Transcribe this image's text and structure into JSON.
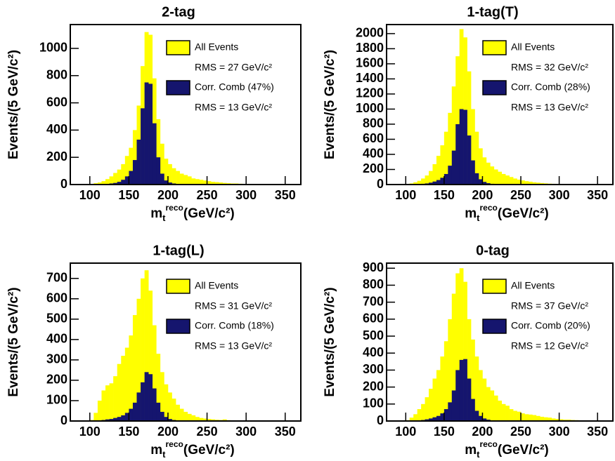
{
  "chart_data": [
    {
      "type": "histogram",
      "title": "2-tag",
      "x_label": {
        "base": "m",
        "sub": "t",
        "sup": "reco",
        "rest": "(GeV/c²)"
      },
      "y_label": "Events/(5 GeV/c²)",
      "bins": [
        95,
        100,
        105,
        110,
        115,
        120,
        125,
        130,
        135,
        140,
        145,
        150,
        155,
        160,
        165,
        170,
        175,
        180,
        185,
        190,
        195,
        200,
        205,
        210,
        215,
        220,
        225,
        230,
        235,
        240,
        245,
        250,
        255,
        260,
        265,
        270,
        275,
        280,
        285,
        290,
        295,
        300,
        305,
        310,
        315,
        320,
        325,
        330,
        335,
        340
      ],
      "series": [
        {
          "name": "All Events",
          "rms": "RMS = 27 GeV/c²",
          "color": "#ffff00",
          "values": [
            0,
            5,
            10,
            15,
            25,
            40,
            60,
            85,
            110,
            150,
            210,
            270,
            400,
            580,
            870,
            1120,
            1100,
            780,
            480,
            300,
            190,
            150,
            120,
            100,
            80,
            70,
            60,
            45,
            40,
            35,
            30,
            25,
            20,
            18,
            15,
            12,
            10,
            8,
            8,
            6,
            5,
            5,
            4,
            3,
            3,
            2,
            2,
            1,
            1
          ]
        },
        {
          "name": "Corr. Comb (47%)",
          "rms": "RMS = 13 GeV/c²",
          "color": "#15156e",
          "values": [
            0,
            0,
            0,
            0,
            2,
            5,
            8,
            12,
            20,
            35,
            60,
            100,
            180,
            330,
            560,
            750,
            740,
            450,
            200,
            80,
            30,
            15,
            8,
            5,
            3,
            2,
            1,
            1,
            0,
            0,
            0,
            0,
            0,
            0,
            0,
            0,
            0,
            0,
            0,
            0,
            0,
            0,
            0,
            0,
            0,
            0,
            0,
            0,
            0
          ]
        }
      ],
      "xlim": [
        75,
        370
      ],
      "ylim": [
        0,
        1175
      ],
      "xticks": [
        100,
        150,
        200,
        250,
        300,
        350
      ],
      "yticks": [
        0,
        200,
        400,
        600,
        800,
        1000
      ]
    },
    {
      "type": "histogram",
      "title": "1-tag(T)",
      "x_label": {
        "base": "m",
        "sub": "t",
        "sup": "reco",
        "rest": "(GeV/c²)"
      },
      "y_label": "Events/(5 GeV/c²)",
      "bins": [
        95,
        100,
        105,
        110,
        115,
        120,
        125,
        130,
        135,
        140,
        145,
        150,
        155,
        160,
        165,
        170,
        175,
        180,
        185,
        190,
        195,
        200,
        205,
        210,
        215,
        220,
        225,
        230,
        235,
        240,
        245,
        250,
        255,
        260,
        265,
        270,
        275,
        280,
        285,
        290,
        295,
        300,
        305,
        310,
        315,
        320,
        325,
        330,
        335,
        340
      ],
      "series": [
        {
          "name": "All Events",
          "rms": "RMS = 32 GeV/c²",
          "color": "#ffff00",
          "values": [
            0,
            5,
            15,
            30,
            50,
            80,
            120,
            180,
            270,
            380,
            520,
            700,
            950,
            1300,
            1700,
            2060,
            1950,
            1500,
            1000,
            700,
            480,
            360,
            290,
            240,
            200,
            170,
            140,
            120,
            100,
            80,
            65,
            55,
            45,
            38,
            30,
            25,
            20,
            16,
            12,
            10,
            8,
            6,
            5,
            4,
            3,
            3,
            2,
            2,
            1
          ]
        },
        {
          "name": "Corr. Comb (28%)",
          "rms": "RMS = 13 GeV/c²",
          "color": "#15156e",
          "values": [
            0,
            0,
            0,
            2,
            5,
            10,
            15,
            25,
            40,
            60,
            90,
            140,
            250,
            450,
            800,
            1000,
            990,
            650,
            320,
            150,
            70,
            35,
            18,
            10,
            5,
            3,
            2,
            1,
            0,
            0,
            0,
            0,
            0,
            0,
            0,
            0,
            0,
            0,
            0,
            0,
            0,
            0,
            0,
            0,
            0,
            0,
            0,
            0,
            0
          ]
        }
      ],
      "xlim": [
        75,
        370
      ],
      "ylim": [
        0,
        2120
      ],
      "xticks": [
        100,
        150,
        200,
        250,
        300,
        350
      ],
      "yticks": [
        0,
        200,
        400,
        600,
        800,
        1000,
        1200,
        1400,
        1600,
        1800,
        2000
      ]
    },
    {
      "type": "histogram",
      "title": "1-tag(L)",
      "x_label": {
        "base": "m",
        "sub": "t",
        "sup": "reco",
        "rest": "(GeV/c²)"
      },
      "y_label": "Events/(5 GeV/c²)",
      "bins": [
        95,
        100,
        105,
        110,
        115,
        120,
        125,
        130,
        135,
        140,
        145,
        150,
        155,
        160,
        165,
        170,
        175,
        180,
        185,
        190,
        195,
        200,
        205,
        210,
        215,
        220,
        225,
        230,
        235,
        240,
        245,
        250,
        255,
        260,
        265,
        270,
        275,
        280,
        285,
        290,
        295,
        300,
        305,
        310,
        315,
        320,
        325,
        330,
        335,
        340
      ],
      "series": [
        {
          "name": "All Events",
          "rms": "RMS = 31 GeV/c²",
          "color": "#ffff00",
          "values": [
            0,
            5,
            40,
            100,
            150,
            175,
            185,
            220,
            280,
            320,
            360,
            420,
            520,
            600,
            700,
            740,
            640,
            470,
            330,
            240,
            180,
            140,
            110,
            80,
            60,
            45,
            35,
            28,
            20,
            15,
            12,
            10,
            8,
            6,
            5,
            8,
            4,
            3,
            3,
            2,
            2,
            1,
            1,
            1,
            0,
            0,
            0,
            0,
            0
          ]
        },
        {
          "name": "Corr. Comb (18%)",
          "rms": "RMS = 13 GeV/c²",
          "color": "#15156e",
          "values": [
            0,
            0,
            1,
            3,
            5,
            8,
            10,
            15,
            20,
            28,
            40,
            60,
            90,
            140,
            190,
            240,
            230,
            160,
            90,
            45,
            20,
            10,
            5,
            3,
            2,
            1,
            0,
            0,
            0,
            0,
            0,
            0,
            0,
            0,
            0,
            0,
            0,
            0,
            0,
            0,
            0,
            0,
            0,
            0,
            0,
            0,
            0,
            0,
            0
          ]
        }
      ],
      "xlim": [
        75,
        370
      ],
      "ylim": [
        0,
        775
      ],
      "xticks": [
        100,
        150,
        200,
        250,
        300,
        350
      ],
      "yticks": [
        0,
        100,
        200,
        300,
        400,
        500,
        600,
        700
      ]
    },
    {
      "type": "histogram",
      "title": "0-tag",
      "x_label": {
        "base": "m",
        "sub": "t",
        "sup": "reco",
        "rest": "(GeV/c²)"
      },
      "y_label": "Events/(5 GeV/c²)",
      "bins": [
        95,
        100,
        105,
        110,
        115,
        120,
        125,
        130,
        135,
        140,
        145,
        150,
        155,
        160,
        165,
        170,
        175,
        180,
        185,
        190,
        195,
        200,
        205,
        210,
        215,
        220,
        225,
        230,
        235,
        240,
        245,
        250,
        255,
        260,
        265,
        270,
        275,
        280,
        285,
        290,
        295,
        300,
        305,
        310,
        315,
        320,
        325,
        330,
        335,
        340
      ],
      "series": [
        {
          "name": "All Events",
          "rms": "RMS = 37 GeV/c²",
          "color": "#ffff00",
          "values": [
            0,
            5,
            20,
            40,
            70,
            100,
            140,
            190,
            250,
            300,
            380,
            470,
            600,
            750,
            870,
            900,
            820,
            600,
            480,
            380,
            300,
            250,
            200,
            180,
            150,
            120,
            100,
            90,
            70,
            60,
            55,
            45,
            40,
            38,
            35,
            30,
            25,
            22,
            20,
            15,
            12,
            10,
            8,
            8,
            6,
            5,
            4,
            3,
            2
          ]
        },
        {
          "name": "Corr. Comb (20%)",
          "rms": "RMS = 12 GeV/c²",
          "color": "#15156e",
          "values": [
            0,
            0,
            1,
            2,
            4,
            6,
            10,
            15,
            22,
            30,
            45,
            70,
            110,
            180,
            300,
            360,
            365,
            250,
            130,
            60,
            30,
            15,
            8,
            4,
            2,
            1,
            0,
            0,
            0,
            0,
            0,
            0,
            0,
            0,
            0,
            0,
            0,
            0,
            0,
            0,
            0,
            0,
            0,
            0,
            0,
            0,
            0,
            0,
            0
          ]
        }
      ],
      "xlim": [
        75,
        370
      ],
      "ylim": [
        0,
        930
      ],
      "xticks": [
        100,
        150,
        200,
        250,
        300,
        350
      ],
      "yticks": [
        0,
        100,
        200,
        300,
        400,
        500,
        600,
        700,
        800,
        900
      ]
    }
  ]
}
